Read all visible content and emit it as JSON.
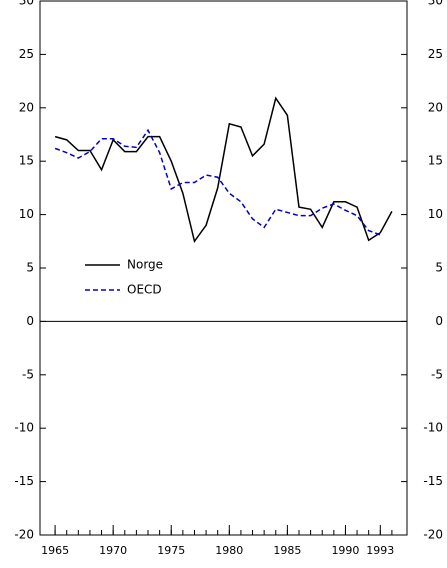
{
  "chart_data": {
    "type": "line",
    "x": [
      1965,
      1966,
      1967,
      1968,
      1969,
      1970,
      1971,
      1972,
      1973,
      1974,
      1975,
      1976,
      1977,
      1978,
      1979,
      1980,
      1981,
      1982,
      1983,
      1984,
      1985,
      1986,
      1987,
      1988,
      1989,
      1990,
      1991,
      1992,
      1993,
      1994
    ],
    "series": [
      {
        "name": "Norge",
        "color": "#000000",
        "dash": false,
        "values": [
          17.3,
          17.0,
          16.0,
          16.0,
          14.2,
          17.0,
          15.9,
          15.9,
          17.3,
          17.3,
          15.0,
          12.0,
          7.5,
          9.0,
          12.5,
          18.5,
          18.2,
          15.5,
          16.6,
          20.9,
          19.3,
          10.7,
          10.5,
          8.8,
          11.2,
          11.2,
          10.7,
          7.6,
          8.3,
          10.3
        ]
      },
      {
        "name": "OECD",
        "color": "#0000cc",
        "dash": true,
        "values": [
          16.2,
          15.8,
          15.3,
          15.9,
          17.1,
          17.1,
          16.4,
          16.3,
          17.9,
          15.8,
          12.4,
          13.0,
          13.0,
          13.7,
          13.5,
          12.0,
          11.2,
          9.6,
          8.8,
          10.5,
          10.2,
          9.9,
          9.9,
          10.6,
          11.0,
          10.4,
          9.9,
          8.5,
          8.1,
          null
        ]
      }
    ],
    "xlim": [
      1963.7,
      1995.3
    ],
    "xticks": [
      1965,
      1970,
      1975,
      1980,
      1985,
      1990,
      1993
    ],
    "ylim": [
      -20,
      30
    ],
    "yticks": [
      -20,
      -15,
      -10,
      -5,
      0,
      5,
      10,
      15,
      20,
      25,
      30
    ],
    "legend": "left"
  }
}
